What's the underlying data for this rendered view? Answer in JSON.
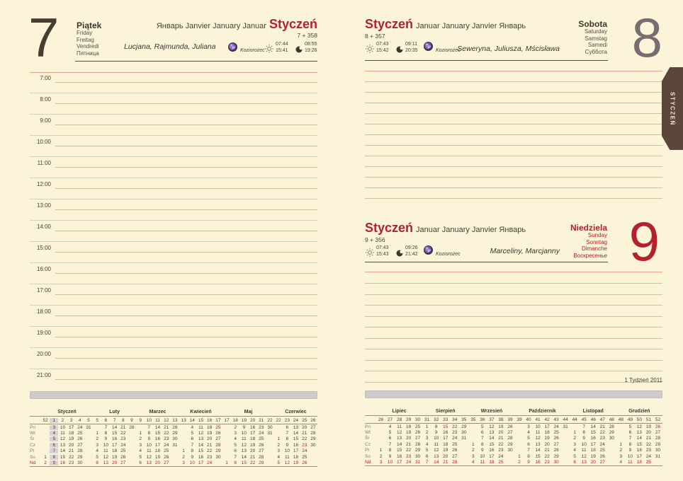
{
  "colors": {
    "paper": "#fbf4d9",
    "accent_red": "#b5202d",
    "salmon_line": "#eaa38f",
    "tab_brown": "#5c463b",
    "highlight_gray": "#d8d3d5"
  },
  "tab": {
    "label": "STYCZEŃ"
  },
  "left": {
    "day_number": "7",
    "day_names": [
      "Piątek",
      "Friday",
      "Freitag",
      "Vendredi",
      "Пятница"
    ],
    "months_prefix": "Январь Janvier January Januar",
    "month_title": "Styczeń",
    "day_counter": "7 + 358",
    "namedays": "Lucjana, Rajmunda, Juliana",
    "zodiac": "Koziorożec",
    "sun_rise": "07:44",
    "sun_set": "15:41",
    "moon_rise": "08:55",
    "moon_set": "19:26",
    "hours": [
      "7:00",
      "8:00",
      "9:00",
      "10:00",
      "11:00",
      "12:00",
      "13:00",
      "14:00",
      "15:00",
      "16:00",
      "17:00",
      "18:00",
      "19:00",
      "20:00",
      "21:00"
    ]
  },
  "saturday": {
    "day_number": "8",
    "day_names": [
      "Sobota",
      "Saturday",
      "Samstag",
      "Samedi",
      "Суббота"
    ],
    "month_title": "Styczeń",
    "months_suffix": "Januar January Janvier Январь",
    "day_counter": "8 + 357",
    "namedays": "Seweryna, Juliusza, Mścisława",
    "zodiac": "Koziorożec",
    "sun_rise": "07:43",
    "sun_set": "15:42",
    "moon_rise": "09:11",
    "moon_set": "20:35",
    "line_count": 12
  },
  "sunday": {
    "day_number": "9",
    "day_names": [
      "Niedziela",
      "Sunday",
      "Sonntag",
      "Dimanche",
      "Воскресенье"
    ],
    "month_title": "Styczeń",
    "months_suffix": "Januar January Janvier Январь",
    "day_counter": "9 + 356",
    "namedays": "Marceliny, Marcjanny",
    "zodiac": "Koziorożec",
    "sun_rise": "07:43",
    "sun_set": "15:43",
    "moon_rise": "09:26",
    "moon_set": "21:42",
    "line_count": 10
  },
  "footer": {
    "week_label": "1 Tydzień 2011"
  },
  "calendars": {
    "day_labels": [
      "Pn",
      "Wt",
      "Śr",
      "Cz",
      "Pt",
      "So",
      "Nd"
    ],
    "left": [
      {
        "name": "Styczeń",
        "weeks": [
          "52",
          "1",
          "2",
          "3",
          "4",
          "5"
        ],
        "hl": 1,
        "red": [],
        "rows": [
          [
            "",
            "3",
            "10",
            "17",
            "24",
            "31"
          ],
          [
            "",
            "4",
            "11",
            "18",
            "25",
            ""
          ],
          [
            "",
            "5",
            "12",
            "19",
            "26",
            ""
          ],
          [
            "",
            "6",
            "13",
            "20",
            "27",
            ""
          ],
          [
            "",
            "7",
            "14",
            "21",
            "28",
            ""
          ],
          [
            "1",
            "8",
            "15",
            "22",
            "29",
            ""
          ],
          [
            "2",
            "9",
            "16",
            "23",
            "30",
            ""
          ]
        ]
      },
      {
        "name": "Luty",
        "weeks": [
          "5",
          "6",
          "7",
          "8",
          "9"
        ],
        "red": [],
        "rows": [
          [
            "",
            "7",
            "14",
            "21",
            "28"
          ],
          [
            "1",
            "8",
            "15",
            "22",
            ""
          ],
          [
            "2",
            "9",
            "16",
            "23",
            ""
          ],
          [
            "3",
            "10",
            "17",
            "24",
            ""
          ],
          [
            "4",
            "11",
            "18",
            "25",
            ""
          ],
          [
            "5",
            "12",
            "19",
            "26",
            ""
          ],
          [
            "6",
            "13",
            "20",
            "27",
            ""
          ]
        ]
      },
      {
        "name": "Marzec",
        "weeks": [
          "9",
          "10",
          "11",
          "12",
          "13"
        ],
        "red": [],
        "rows": [
          [
            "",
            "7",
            "14",
            "21",
            "28"
          ],
          [
            "1",
            "8",
            "15",
            "22",
            "29"
          ],
          [
            "2",
            "9",
            "16",
            "23",
            "30"
          ],
          [
            "3",
            "10",
            "17",
            "24",
            "31"
          ],
          [
            "4",
            "11",
            "18",
            "25",
            ""
          ],
          [
            "5",
            "12",
            "19",
            "26",
            ""
          ],
          [
            "6",
            "13",
            "20",
            "27",
            ""
          ]
        ]
      },
      {
        "name": "Kwiecień",
        "weeks": [
          "13",
          "14",
          "15",
          "16",
          "17"
        ],
        "red": [
          [
            0,
            4
          ]
        ],
        "rows": [
          [
            "",
            "4",
            "11",
            "18",
            "25"
          ],
          [
            "",
            "5",
            "12",
            "19",
            "26"
          ],
          [
            "",
            "6",
            "13",
            "20",
            "27"
          ],
          [
            "",
            "7",
            "14",
            "21",
            "28"
          ],
          [
            "1",
            "8",
            "15",
            "22",
            "29"
          ],
          [
            "2",
            "9",
            "16",
            "23",
            "30"
          ],
          [
            "3",
            "10",
            "17",
            "24",
            ""
          ]
        ]
      },
      {
        "name": "Maj",
        "weeks": [
          "17",
          "18",
          "19",
          "20",
          "21",
          "22"
        ],
        "red": [
          [
            1,
            1
          ]
        ],
        "rows": [
          [
            "",
            "2",
            "9",
            "16",
            "23",
            "30"
          ],
          [
            "",
            "3",
            "10",
            "17",
            "24",
            "31"
          ],
          [
            "",
            "4",
            "11",
            "18",
            "25",
            ""
          ],
          [
            "",
            "5",
            "12",
            "19",
            "26",
            ""
          ],
          [
            "",
            "6",
            "13",
            "20",
            "27",
            ""
          ],
          [
            "",
            "7",
            "14",
            "21",
            "28",
            ""
          ],
          [
            "1",
            "8",
            "15",
            "22",
            "29",
            ""
          ]
        ]
      },
      {
        "name": "Czerwiec",
        "weeks": [
          "22",
          "23",
          "24",
          "25",
          "26"
        ],
        "red": [
          [
            3,
            3
          ]
        ],
        "rows": [
          [
            "",
            "6",
            "13",
            "20",
            "27"
          ],
          [
            "",
            "7",
            "14",
            "21",
            "28"
          ],
          [
            "1",
            "8",
            "15",
            "22",
            "29"
          ],
          [
            "2",
            "9",
            "16",
            "23",
            "30"
          ],
          [
            "3",
            "10",
            "17",
            "24",
            ""
          ],
          [
            "4",
            "11",
            "18",
            "25",
            ""
          ],
          [
            "5",
            "12",
            "19",
            "26",
            ""
          ]
        ]
      }
    ],
    "right": [
      {
        "name": "Lipiec",
        "weeks": [
          "26",
          "27",
          "28",
          "29",
          "30"
        ],
        "red": [],
        "rows": [
          [
            "",
            "4",
            "11",
            "18",
            "25"
          ],
          [
            "",
            "5",
            "12",
            "19",
            "26"
          ],
          [
            "",
            "6",
            "13",
            "20",
            "27"
          ],
          [
            "",
            "7",
            "14",
            "21",
            "28"
          ],
          [
            "1",
            "8",
            "15",
            "22",
            "29"
          ],
          [
            "2",
            "9",
            "16",
            "23",
            "30"
          ],
          [
            "3",
            "10",
            "17",
            "24",
            "31"
          ]
        ]
      },
      {
        "name": "Sierpień",
        "weeks": [
          "31",
          "32",
          "33",
          "34",
          "35"
        ],
        "red": [
          [
            0,
            2
          ]
        ],
        "rows": [
          [
            "1",
            "8",
            "15",
            "22",
            "29"
          ],
          [
            "2",
            "9",
            "16",
            "23",
            "30"
          ],
          [
            "3",
            "10",
            "17",
            "24",
            "31"
          ],
          [
            "4",
            "11",
            "18",
            "25",
            ""
          ],
          [
            "5",
            "12",
            "19",
            "26",
            ""
          ],
          [
            "6",
            "13",
            "20",
            "27",
            ""
          ],
          [
            "7",
            "14",
            "21",
            "28",
            ""
          ]
        ]
      },
      {
        "name": "Wrzesień",
        "weeks": [
          "35",
          "36",
          "37",
          "38",
          "39"
        ],
        "red": [],
        "rows": [
          [
            "",
            "5",
            "12",
            "19",
            "26"
          ],
          [
            "",
            "6",
            "13",
            "20",
            "27"
          ],
          [
            "",
            "7",
            "14",
            "21",
            "28"
          ],
          [
            "1",
            "8",
            "15",
            "22",
            "29"
          ],
          [
            "2",
            "9",
            "16",
            "23",
            "30"
          ],
          [
            "3",
            "10",
            "17",
            "24",
            ""
          ],
          [
            "4",
            "11",
            "18",
            "25",
            ""
          ]
        ]
      },
      {
        "name": "Październik",
        "weeks": [
          "39",
          "40",
          "41",
          "42",
          "43",
          "44"
        ],
        "red": [],
        "rows": [
          [
            "",
            "3",
            "10",
            "17",
            "24",
            "31"
          ],
          [
            "",
            "4",
            "11",
            "18",
            "25",
            ""
          ],
          [
            "",
            "5",
            "12",
            "19",
            "26",
            ""
          ],
          [
            "",
            "6",
            "13",
            "20",
            "27",
            ""
          ],
          [
            "",
            "7",
            "14",
            "21",
            "28",
            ""
          ],
          [
            "1",
            "8",
            "15",
            "22",
            "29",
            ""
          ],
          [
            "2",
            "9",
            "16",
            "23",
            "30",
            ""
          ]
        ]
      },
      {
        "name": "Listopad",
        "weeks": [
          "44",
          "45",
          "46",
          "47",
          "48"
        ],
        "red": [
          [
            1,
            0
          ],
          [
            4,
            2
          ]
        ],
        "rows": [
          [
            "",
            "7",
            "14",
            "21",
            "28"
          ],
          [
            "1",
            "8",
            "15",
            "22",
            "29"
          ],
          [
            "2",
            "9",
            "16",
            "23",
            "30"
          ],
          [
            "3",
            "10",
            "17",
            "24",
            ""
          ],
          [
            "4",
            "11",
            "18",
            "25",
            ""
          ],
          [
            "5",
            "12",
            "19",
            "26",
            ""
          ],
          [
            "6",
            "13",
            "20",
            "27",
            ""
          ]
        ]
      },
      {
        "name": "Grudzień",
        "weeks": [
          "48",
          "49",
          "50",
          "51",
          "52"
        ],
        "red": [
          [
            0,
            4
          ]
        ],
        "rows": [
          [
            "",
            "5",
            "12",
            "19",
            "26"
          ],
          [
            "",
            "6",
            "13",
            "20",
            "27"
          ],
          [
            "",
            "7",
            "14",
            "21",
            "28"
          ],
          [
            "1",
            "8",
            "15",
            "22",
            "29"
          ],
          [
            "2",
            "9",
            "16",
            "23",
            "30"
          ],
          [
            "3",
            "10",
            "17",
            "24",
            "31"
          ],
          [
            "4",
            "11",
            "18",
            "25",
            ""
          ]
        ]
      }
    ]
  }
}
